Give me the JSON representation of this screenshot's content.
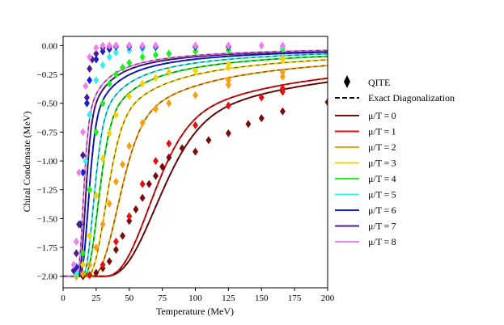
{
  "chart_data": {
    "type": "line",
    "title": "",
    "xlabel": "Temperature (MeV)",
    "ylabel": "Chiral Condensate (MeV)",
    "xlim": [
      0,
      200
    ],
    "ylim": [
      -2.1,
      0.08
    ],
    "xticks": [
      0,
      25,
      50,
      75,
      100,
      125,
      150,
      175,
      200
    ],
    "yticks": [
      0.0,
      -0.25,
      -0.5,
      -0.75,
      -1.0,
      -1.25,
      -1.5,
      -1.75,
      -2.0
    ],
    "xtick_labels": [
      "0",
      "25",
      "50",
      "75",
      "100",
      "125",
      "150",
      "175",
      "200"
    ],
    "ytick_labels": [
      "0.00",
      "−0.25",
      "−0.50",
      "−0.75",
      "−1.00",
      "−1.25",
      "−1.50",
      "−1.75",
      "−2.00"
    ],
    "grid": false,
    "legend_position": "right",
    "legend": {
      "qite_label": "QITE",
      "exact_label": "Exact Diagonalization"
    },
    "series": [
      {
        "name": "μ/T = 0",
        "label": "μ/T = 0",
        "color": "#7b0c0c",
        "T0": 30,
        "w": 32,
        "qite_T": [
          10,
          15,
          20,
          25,
          30,
          35,
          40,
          45,
          50,
          55,
          60,
          65,
          70,
          75,
          80,
          90,
          100,
          110,
          125,
          140,
          150,
          166,
          200
        ],
        "qite_y": [
          -2.0,
          -2.0,
          -1.99,
          -1.97,
          -1.93,
          -1.87,
          -1.77,
          -1.65,
          -1.52,
          -1.42,
          -1.32,
          -1.2,
          -1.13,
          -1.05,
          -0.97,
          -0.89,
          -0.92,
          -0.82,
          -0.76,
          -0.68,
          -0.63,
          -0.57,
          -0.49
        ]
      },
      {
        "name": "μ/T = 1",
        "label": "μ/T = 1",
        "color": "#e31212",
        "T0": 30,
        "w": 28,
        "qite_T": [
          20,
          30,
          40,
          50,
          60,
          70,
          80,
          100,
          125,
          150,
          166,
          166
        ],
        "qite_y": [
          -1.99,
          -1.9,
          -1.7,
          -1.48,
          -1.2,
          -1.0,
          -0.85,
          -0.69,
          -0.52,
          -0.45,
          -0.4,
          -0.37
        ]
      },
      {
        "name": "μ/T = 2",
        "label": "μ/T = 2",
        "color": "#f5a010",
        "T0": 20,
        "w": 17,
        "qite_T": [
          10,
          15,
          20,
          25,
          30,
          35,
          40,
          45,
          50,
          60,
          70,
          80,
          100,
          125,
          125,
          166,
          166
        ],
        "qite_y": [
          -2.0,
          -1.98,
          -1.9,
          -1.75,
          -1.55,
          -1.37,
          -1.18,
          -1.03,
          -0.87,
          -0.67,
          -0.55,
          -0.5,
          -0.43,
          -0.34,
          -0.3,
          -0.27,
          -0.23
        ]
      },
      {
        "name": "μ/T = 3",
        "label": "μ/T = 3",
        "color": "#f5d210",
        "T0": 17,
        "w": 12,
        "qite_T": [
          10,
          15,
          20,
          25,
          30,
          35,
          40,
          50,
          60,
          70,
          80,
          100,
          125,
          125,
          166,
          166
        ],
        "qite_y": [
          -1.99,
          -1.9,
          -1.65,
          -1.3,
          -0.98,
          -0.76,
          -0.6,
          -0.44,
          -0.33,
          -0.28,
          -0.23,
          -0.22,
          -0.16,
          -0.19,
          -0.12,
          -0.11
        ]
      },
      {
        "name": "μ/T = 4",
        "label": "μ/T = 4",
        "color": "#22ee22",
        "T0": 15,
        "w": 9,
        "qite_T": [
          10,
          15,
          20,
          25,
          30,
          35,
          40,
          45,
          50,
          60,
          70,
          80,
          100,
          125,
          166
        ],
        "qite_y": [
          -1.98,
          -1.8,
          -1.25,
          -0.75,
          -0.5,
          -0.33,
          -0.25,
          -0.19,
          -0.15,
          -0.1,
          -0.08,
          -0.07,
          -0.05,
          -0.04,
          -0.03
        ]
      },
      {
        "name": "μ/T = 5",
        "label": "μ/T = 5",
        "color": "#33f0ee",
        "T0": 14,
        "w": 7,
        "qite_T": [
          10,
          13,
          17,
          20,
          25,
          30,
          35,
          40,
          50,
          60,
          70,
          100,
          125,
          166
        ],
        "qite_y": [
          -1.97,
          -1.55,
          -1.0,
          -0.6,
          -0.3,
          -0.17,
          -0.1,
          -0.06,
          -0.04,
          -0.03,
          -0.02,
          -0.01,
          -0.01,
          -0.01
        ]
      },
      {
        "name": "μ/T = 6",
        "label": "μ/T = 6",
        "color": "#1020dd",
        "T0": 12,
        "w": 5.5,
        "qite_T": [
          10,
          13,
          15,
          18,
          20,
          25,
          30,
          35,
          40,
          50,
          60,
          70,
          100,
          125
        ],
        "qite_y": [
          -1.92,
          -1.55,
          -1.1,
          -0.5,
          -0.3,
          -0.12,
          -0.05,
          -0.03,
          -0.01,
          -0.01,
          -0.01,
          -0.01,
          -0.01,
          -0.01
        ]
      },
      {
        "name": "μ/T = 7",
        "label": "μ/T = 7",
        "color": "#4e1a8c",
        "T0": 11,
        "w": 4.5,
        "qite_T": [
          8,
          10,
          12,
          15,
          18,
          20,
          22,
          25,
          30,
          35,
          40,
          50
        ],
        "qite_y": [
          -1.95,
          -1.8,
          -1.55,
          -0.95,
          -0.45,
          -0.2,
          -0.12,
          -0.07,
          -0.02,
          -0.01,
          0.0,
          0.0
        ]
      },
      {
        "name": "μ/T = 8",
        "label": "μ/T = 8",
        "color": "#ee80ee",
        "T0": 10,
        "w": 4,
        "qite_T": [
          8,
          10,
          12,
          15,
          17,
          20,
          25,
          30,
          35,
          40,
          50,
          60,
          70,
          100,
          125,
          150,
          166
        ],
        "qite_y": [
          -1.9,
          -1.7,
          -1.1,
          -0.75,
          -0.35,
          -0.1,
          -0.02,
          0.0,
          0.0,
          0.0,
          0.0,
          0.0,
          0.0,
          0.0,
          0.0,
          0.0,
          0.0
        ]
      }
    ]
  }
}
